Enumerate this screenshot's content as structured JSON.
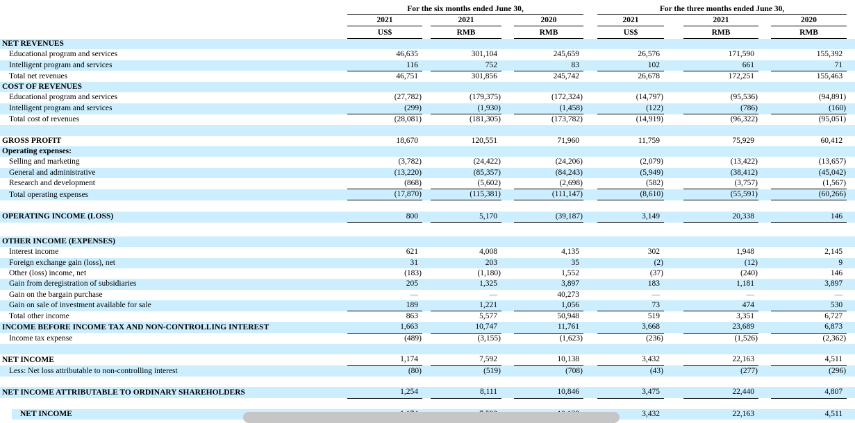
{
  "colors": {
    "stripe": "#cceeff",
    "rule": "#000000",
    "dash": "#555555",
    "scrollbar": "#c6c6c6"
  },
  "header": {
    "groups": [
      {
        "title": "For the six months ended June 30,"
      },
      {
        "title": "For the three months ended June 30,"
      }
    ],
    "years": [
      "2021",
      "2021",
      "2020",
      "2021",
      "2021",
      "2020"
    ],
    "currencies": [
      "US$",
      "RMB",
      "RMB",
      "US$",
      "RMB",
      "RMB"
    ]
  },
  "rows": [
    {
      "label": "NET REVENUES",
      "bold": true,
      "stripe": true,
      "indent": 0,
      "values": [
        "",
        "",
        "",
        "",
        "",
        ""
      ]
    },
    {
      "label": "Educational program and services",
      "indent": 1,
      "values": [
        "46,635",
        "301,104",
        "245,659",
        "26,576",
        "171,590",
        "155,392"
      ]
    },
    {
      "label": "Intelligent program and services",
      "indent": 1,
      "stripe": true,
      "rule": true,
      "values": [
        "116",
        "752",
        "83",
        "102",
        "661",
        "71"
      ]
    },
    {
      "label": "Total net revenues",
      "indent": 1,
      "values": [
        "46,751",
        "301,856",
        "245,742",
        "26,678",
        "172,251",
        "155,463"
      ]
    },
    {
      "label": "COST OF REVENUES",
      "bold": true,
      "stripe": true,
      "indent": 0,
      "values": [
        "",
        "",
        "",
        "",
        "",
        ""
      ]
    },
    {
      "label": "Educational program and services",
      "indent": 1,
      "values": [
        "(27,782)",
        "(179,375)",
        "(172,324)",
        "(14,797)",
        "(95,536)",
        "(94,891)"
      ]
    },
    {
      "label": "Intelligent program and services",
      "indent": 1,
      "stripe": true,
      "rule": true,
      "values": [
        "(299)",
        "(1,930)",
        "(1,458)",
        "(122)",
        "(786)",
        "(160)"
      ]
    },
    {
      "label": "Total cost of revenues",
      "indent": 1,
      "values": [
        "(28,081)",
        "(181,305)",
        "(173,782)",
        "(14,919)",
        "(96,322)",
        "(95,051)"
      ]
    },
    {
      "spacer": true,
      "stripe": true
    },
    {
      "label": "GROSS PROFIT",
      "bold": true,
      "indent": 0,
      "values": [
        "18,670",
        "120,551",
        "71,960",
        "11,759",
        "75,929",
        "60,412"
      ]
    },
    {
      "label": "Operating expenses:",
      "bold": true,
      "stripe": true,
      "indent": 0,
      "values": [
        "",
        "",
        "",
        "",
        "",
        ""
      ]
    },
    {
      "label": "Selling and marketing",
      "indent": 1,
      "values": [
        "(3,782)",
        "(24,422)",
        "(24,206)",
        "(2,079)",
        "(13,422)",
        "(13,657)"
      ]
    },
    {
      "label": "General and administrative",
      "indent": 1,
      "stripe": true,
      "values": [
        "(13,220)",
        "(85,357)",
        "(84,243)",
        "(5,949)",
        "(38,412)",
        "(45,042)"
      ]
    },
    {
      "label": "Research and development",
      "indent": 1,
      "rule": true,
      "values": [
        "(868)",
        "(5,602)",
        "(2,698)",
        "(582)",
        "(3,757)",
        "(1,567)"
      ]
    },
    {
      "label": "Total operating expenses",
      "indent": 1,
      "stripe": true,
      "rule": true,
      "values": [
        "(17,870)",
        "(115,381)",
        "(111,147)",
        "(8,610)",
        "(55,591)",
        "(60,266)"
      ]
    },
    {
      "spacer": true
    },
    {
      "label": "OPERATING INCOME (LOSS)",
      "bold": true,
      "stripe": true,
      "rule": true,
      "indent": 0,
      "values": [
        "800",
        "5,170",
        "(39,187)",
        "3,149",
        "20,338",
        "146"
      ]
    },
    {
      "spacer": true,
      "height": 20
    },
    {
      "label": "OTHER INCOME (EXPENSES)",
      "bold": true,
      "stripe": true,
      "indent": 0,
      "values": [
        "",
        "",
        "",
        "",
        "",
        ""
      ]
    },
    {
      "label": "Interest income",
      "indent": 1,
      "values": [
        "621",
        "4,008",
        "4,135",
        "302",
        "1,948",
        "2,145"
      ]
    },
    {
      "label": "Foreign exchange gain (loss), net",
      "indent": 1,
      "stripe": true,
      "values": [
        "31",
        "203",
        "35",
        "(2)",
        "(12)",
        "9"
      ]
    },
    {
      "label": "Other (loss) income, net",
      "indent": 1,
      "values": [
        "(183)",
        "(1,180)",
        "1,552",
        "(37)",
        "(240)",
        "146"
      ]
    },
    {
      "label": "Gain from deregistration of subsidiaries",
      "indent": 1,
      "stripe": true,
      "values": [
        "205",
        "1,325",
        "3,897",
        "183",
        "1,181",
        "3,897"
      ]
    },
    {
      "label": "Gain on the bargain purchase",
      "indent": 1,
      "values": [
        "—",
        "—",
        "40,273",
        "—",
        "—",
        "—"
      ]
    },
    {
      "label": "Gain on sale of investment available for sale",
      "indent": 1,
      "stripe": true,
      "rule": true,
      "values": [
        "189",
        "1,221",
        "1,056",
        "73",
        "474",
        "530"
      ]
    },
    {
      "label": "Total other income",
      "indent": 1,
      "values": [
        "863",
        "5,577",
        "50,948",
        "519",
        "3,351",
        "6,727"
      ]
    },
    {
      "label": "INCOME BEFORE INCOME TAX AND NON-CONTROLLING INTEREST",
      "bold": true,
      "stripe": true,
      "rule": true,
      "indent": 0,
      "values": [
        "1,663",
        "10,747",
        "11,761",
        "3,668",
        "23,689",
        "6,873"
      ]
    },
    {
      "label": "Income tax expense",
      "indent": 1,
      "values": [
        "(489)",
        "(3,155)",
        "(1,623)",
        "(236)",
        "(1,526)",
        "(2,362)"
      ]
    },
    {
      "spacer": true,
      "stripe": true
    },
    {
      "label": "NET INCOME",
      "bold": true,
      "indent": 0,
      "rule": true,
      "values": [
        "1,174",
        "7,592",
        "10,138",
        "3,432",
        "22,163",
        "4,511"
      ]
    },
    {
      "label": "Less: Net loss attributable to non-controlling interest",
      "indent": 1,
      "stripe": true,
      "values": [
        "(80)",
        "(519)",
        "(708)",
        "(43)",
        "(277)",
        "(296)"
      ]
    },
    {
      "spacer": true
    },
    {
      "label": "NET INCOME ATTRIBUTABLE TO ORDINARY SHAREHOLDERS",
      "bold": true,
      "stripe": true,
      "rule": true,
      "indent": 0,
      "values": [
        "1,254",
        "8,111",
        "10,846",
        "3,475",
        "22,440",
        "4,807"
      ]
    },
    {
      "spacer": true
    },
    {
      "label": "NET INCOME",
      "bold": true,
      "stripe": true,
      "inset": true,
      "indent": 0,
      "values": [
        "1,174",
        "7,592",
        "10,138",
        "3,432",
        "22,163",
        "4,511"
      ]
    }
  ]
}
